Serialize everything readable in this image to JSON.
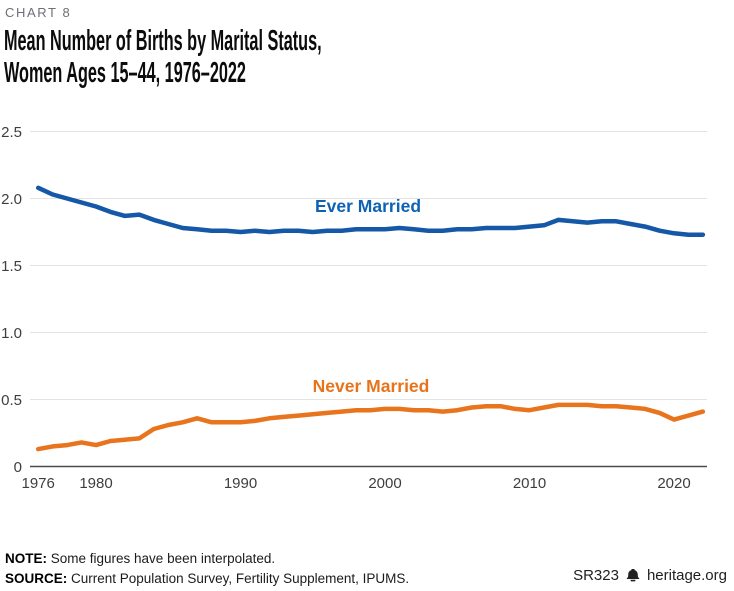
{
  "header": {
    "kicker": "CHART 8",
    "title_line1": "Mean Number of Births by Marital Status,",
    "title_line2": "Women Ages 15–44, 1976–2022"
  },
  "footer": {
    "note_label": "NOTE:",
    "note_text": " Some figures have been interpolated.",
    "source_label": "SOURCE:",
    "source_text": " Current Population Survey, Fertility Supplement, IPUMS.",
    "report_id": "SR323",
    "site": "heritage.org",
    "bell_icon": "liberty-bell-icon"
  },
  "colors": {
    "ever_married_line": "#1558a8",
    "ever_married_label": "#0e62b4",
    "never_married_line": "#e8751d",
    "never_married_label": "#e8731a",
    "gridline": "#e3e3e3",
    "axis": "#4b4b4b",
    "tick_text": "#3e3e3e"
  },
  "chart_data": {
    "type": "line",
    "title": "Mean Number of Births by Marital Status, Women Ages 15–44, 1976–2022",
    "xlabel": "",
    "ylabel": "",
    "ylim": [
      0,
      2.5
    ],
    "grid": "horizontal",
    "legend_position": "inline-labels",
    "x": [
      1976,
      1977,
      1978,
      1979,
      1980,
      1981,
      1982,
      1983,
      1984,
      1985,
      1986,
      1987,
      1988,
      1989,
      1990,
      1991,
      1992,
      1993,
      1994,
      1995,
      1996,
      1997,
      1998,
      1999,
      2000,
      2001,
      2002,
      2003,
      2004,
      2005,
      2006,
      2007,
      2008,
      2009,
      2010,
      2011,
      2012,
      2013,
      2014,
      2015,
      2016,
      2017,
      2018,
      2019,
      2020,
      2021,
      2022
    ],
    "y_ticks": [
      {
        "value": 0,
        "label": "0"
      },
      {
        "value": 0.5,
        "label": "0.5"
      },
      {
        "value": 1.0,
        "label": "1.0"
      },
      {
        "value": 1.5,
        "label": "1.5"
      },
      {
        "value": 2.0,
        "label": "2.0"
      },
      {
        "value": 2.5,
        "label": "2.5"
      }
    ],
    "x_ticks": [
      {
        "value": 1976,
        "label": "1976"
      },
      {
        "value": 1980,
        "label": "1980"
      },
      {
        "value": 1990,
        "label": "1990"
      },
      {
        "value": 2000,
        "label": "2000"
      },
      {
        "value": 2010,
        "label": "2010"
      },
      {
        "value": 2020,
        "label": "2020"
      }
    ],
    "series": [
      {
        "name": "Ever Married",
        "values": [
          2.08,
          2.03,
          2.0,
          1.97,
          1.94,
          1.9,
          1.87,
          1.88,
          1.84,
          1.81,
          1.78,
          1.77,
          1.76,
          1.76,
          1.75,
          1.76,
          1.75,
          1.76,
          1.76,
          1.75,
          1.76,
          1.76,
          1.77,
          1.77,
          1.77,
          1.78,
          1.77,
          1.76,
          1.76,
          1.77,
          1.77,
          1.78,
          1.78,
          1.78,
          1.79,
          1.8,
          1.84,
          1.83,
          1.82,
          1.83,
          1.83,
          1.81,
          1.79,
          1.76,
          1.74,
          1.73,
          1.73
        ]
      },
      {
        "name": "Never Married",
        "values": [
          0.13,
          0.15,
          0.16,
          0.18,
          0.16,
          0.19,
          0.2,
          0.21,
          0.28,
          0.31,
          0.33,
          0.36,
          0.33,
          0.33,
          0.33,
          0.34,
          0.36,
          0.37,
          0.38,
          0.39,
          0.4,
          0.41,
          0.42,
          0.42,
          0.43,
          0.43,
          0.42,
          0.42,
          0.41,
          0.42,
          0.44,
          0.45,
          0.45,
          0.43,
          0.42,
          0.44,
          0.46,
          0.46,
          0.46,
          0.45,
          0.45,
          0.44,
          0.43,
          0.4,
          0.35,
          0.38,
          0.41
        ]
      }
    ]
  }
}
